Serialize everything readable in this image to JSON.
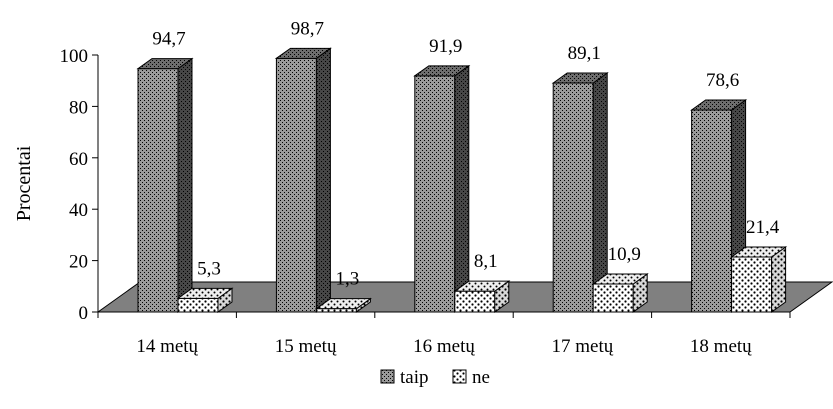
{
  "colors": {
    "taip_front": "#9a9a9a",
    "taip_side": "#474747",
    "taip_top": "#6e6e6e",
    "ne_front": "#ffffff",
    "ne_side": "#d8d8d8",
    "ne_top": "#efefef",
    "floor": "#808080",
    "dot": "#000000"
  },
  "chart_data": {
    "type": "bar",
    "categories": [
      "14 metų",
      "15 metų",
      "16 metų",
      "17 metų",
      "18 metų"
    ],
    "series": [
      {
        "name": "taip",
        "values": [
          94.7,
          98.7,
          91.9,
          89.1,
          78.6
        ],
        "labels": [
          "94,7",
          "98,7",
          "91,9",
          "89,1",
          "78,6"
        ]
      },
      {
        "name": "ne",
        "values": [
          5.3,
          1.3,
          8.1,
          10.9,
          21.4
        ],
        "labels": [
          "5,3",
          "1,3",
          "8,1",
          "10,9",
          "21,4"
        ]
      }
    ],
    "ylabel": "Procentai",
    "xlabel": "",
    "ylim": [
      0,
      100
    ],
    "yticks": [
      "0",
      "20",
      "40",
      "60",
      "80",
      "100"
    ],
    "legend_position": "bottom",
    "grid": false
  }
}
